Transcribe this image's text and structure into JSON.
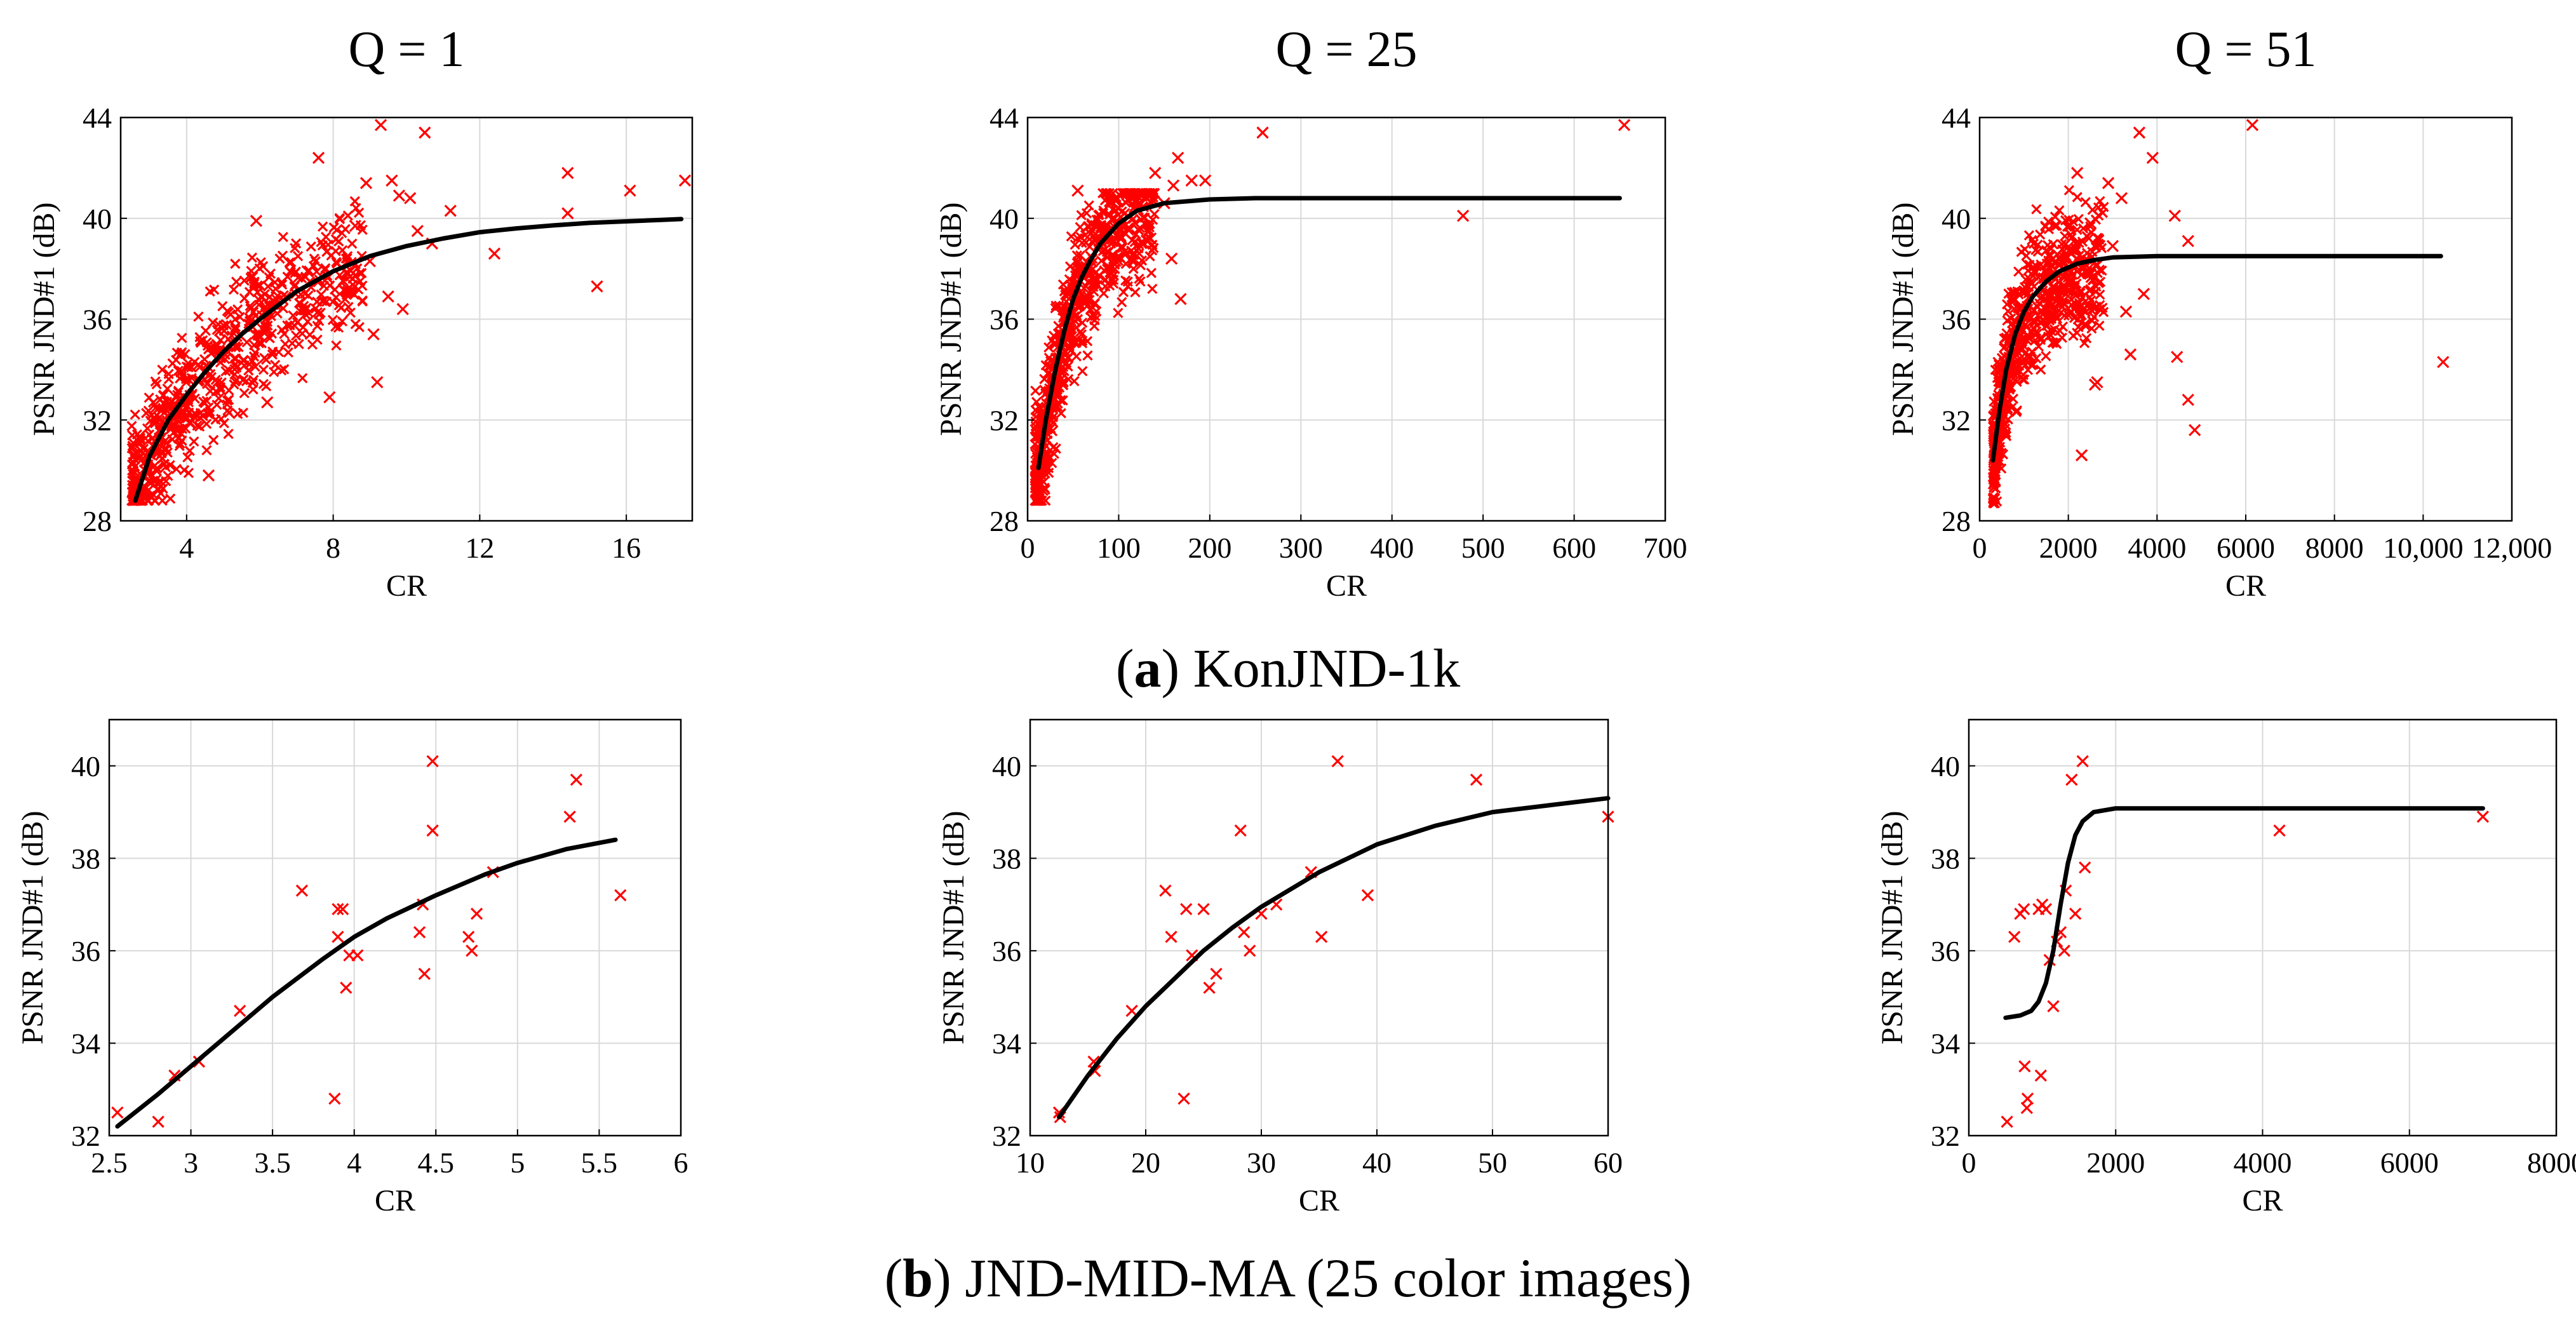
{
  "figure": {
    "caption_a": {
      "letter": "a",
      "text": "KonJND-1k"
    },
    "caption_b": {
      "letter": "b",
      "text": "JND-MID-MA (25 color images)"
    },
    "marker_color": "#ff0000",
    "curve_color": "#000000"
  },
  "chart_data": [
    {
      "type": "scatter",
      "panel": "a1",
      "title": "Q = 1",
      "xlabel": "CR",
      "ylabel": "PSNR JND#1 (dB)",
      "xlim": [
        2.2,
        17.8
      ],
      "ylim": [
        28,
        44
      ],
      "xticks": [
        4,
        8,
        12,
        16
      ],
      "xtick_labels": [
        "4",
        "8",
        "12",
        "16"
      ],
      "yticks": [
        28,
        32,
        36,
        40,
        44
      ],
      "ytick_labels": [
        "28",
        "32",
        "36",
        "40",
        "44"
      ],
      "cloud": {
        "n": 700,
        "xmin": 2.5,
        "xmax": 8.8,
        "ymin": 28.8,
        "ymax": 40.8,
        "seed": 11
      },
      "fit": {
        "x": [
          2.6,
          3.0,
          3.5,
          4.0,
          4.5,
          5.0,
          5.5,
          6.0,
          7.0,
          8.0,
          9.0,
          10.0,
          11.0,
          12.0,
          13.0,
          14.0,
          15.0,
          16.0,
          17.0,
          17.5
        ],
        "y": [
          28.8,
          30.6,
          32.0,
          33.0,
          33.9,
          34.7,
          35.4,
          36.0,
          37.1,
          37.9,
          38.5,
          38.9,
          39.2,
          39.45,
          39.6,
          39.72,
          39.82,
          39.88,
          39.94,
          39.97
        ]
      },
      "points": [
        {
          "x": 7.6,
          "y": 42.4
        },
        {
          "x": 9.3,
          "y": 43.7
        },
        {
          "x": 10.5,
          "y": 43.4
        },
        {
          "x": 14.4,
          "y": 41.8
        },
        {
          "x": 16.1,
          "y": 41.1
        },
        {
          "x": 17.6,
          "y": 41.5
        },
        {
          "x": 9.6,
          "y": 41.5
        },
        {
          "x": 8.9,
          "y": 41.4
        },
        {
          "x": 9.8,
          "y": 40.9
        },
        {
          "x": 10.1,
          "y": 40.8
        },
        {
          "x": 11.2,
          "y": 40.3
        },
        {
          "x": 14.4,
          "y": 40.2
        },
        {
          "x": 10.7,
          "y": 39.0
        },
        {
          "x": 12.4,
          "y": 38.6
        },
        {
          "x": 15.2,
          "y": 37.3
        },
        {
          "x": 9.1,
          "y": 35.4
        },
        {
          "x": 9.2,
          "y": 33.5
        },
        {
          "x": 7.9,
          "y": 32.9
        },
        {
          "x": 6.2,
          "y": 32.7
        },
        {
          "x": 4.6,
          "y": 29.8
        },
        {
          "x": 8.4,
          "y": 37.2
        },
        {
          "x": 9.0,
          "y": 38.3
        },
        {
          "x": 9.5,
          "y": 36.9
        },
        {
          "x": 8.6,
          "y": 39.7
        },
        {
          "x": 9.9,
          "y": 36.4
        },
        {
          "x": 10.3,
          "y": 39.5
        },
        {
          "x": 7.3,
          "y": 37.9
        },
        {
          "x": 5.9,
          "y": 39.9
        }
      ]
    },
    {
      "type": "scatter",
      "panel": "a2",
      "title": "Q = 25",
      "xlabel": "CR",
      "ylabel": "PSNR JND#1 (dB)",
      "xlim": [
        0,
        700
      ],
      "ylim": [
        28,
        44
      ],
      "xticks": [
        0,
        100,
        200,
        300,
        400,
        500,
        600,
        700
      ],
      "xtick_labels": [
        "0",
        "100",
        "200",
        "300",
        "400",
        "500",
        "600",
        "700"
      ],
      "yticks": [
        28,
        32,
        36,
        40,
        44
      ],
      "ytick_labels": [
        "28",
        "32",
        "36",
        "40",
        "44"
      ],
      "cloud": {
        "n": 700,
        "xmin": 8,
        "xmax": 140,
        "ymin": 28.8,
        "ymax": 41,
        "seed": 23
      },
      "fit": {
        "x": [
          12,
          20,
          30,
          40,
          50,
          60,
          70,
          80,
          100,
          120,
          150,
          200,
          250,
          300,
          400,
          500,
          600,
          650
        ],
        "y": [
          30.1,
          32.0,
          33.9,
          35.5,
          36.8,
          37.7,
          38.4,
          39.0,
          39.8,
          40.3,
          40.6,
          40.75,
          40.8,
          40.8,
          40.8,
          40.8,
          40.8,
          40.8
        ]
      },
      "points": [
        {
          "x": 655,
          "y": 43.7
        },
        {
          "x": 258,
          "y": 43.4
        },
        {
          "x": 478,
          "y": 40.1
        },
        {
          "x": 55,
          "y": 41.1
        },
        {
          "x": 140,
          "y": 41.8
        },
        {
          "x": 165,
          "y": 42.4
        },
        {
          "x": 180,
          "y": 41.5
        },
        {
          "x": 195,
          "y": 41.5
        },
        {
          "x": 150,
          "y": 40.6
        },
        {
          "x": 158,
          "y": 38.4
        },
        {
          "x": 168,
          "y": 36.8
        },
        {
          "x": 125,
          "y": 40.9
        },
        {
          "x": 110,
          "y": 39.6
        },
        {
          "x": 95,
          "y": 39.1
        },
        {
          "x": 135,
          "y": 39.2
        },
        {
          "x": 160,
          "y": 41.3
        }
      ]
    },
    {
      "type": "scatter",
      "panel": "a3",
      "title": "Q = 51",
      "xlabel": "CR",
      "ylabel": "PSNR JND#1 (dB)",
      "xlim": [
        0,
        12000
      ],
      "ylim": [
        28,
        44
      ],
      "xticks": [
        0,
        2000,
        4000,
        6000,
        8000,
        10000,
        12000
      ],
      "xtick_labels": [
        "0",
        "2000",
        "4000",
        "6000",
        "8000",
        "10,000",
        "12,000"
      ],
      "yticks": [
        28,
        32,
        36,
        40,
        44
      ],
      "ytick_labels": [
        "28",
        "32",
        "36",
        "40",
        "44"
      ],
      "cloud": {
        "n": 650,
        "xmin": 300,
        "xmax": 2800,
        "ymin": 28.7,
        "ymax": 41.2,
        "seed": 37
      },
      "fit": {
        "x": [
          300,
          450,
          600,
          800,
          1000,
          1200,
          1500,
          1800,
          2200,
          2600,
          3000,
          4000,
          5000,
          6000,
          8000,
          10400
        ],
        "y": [
          30.4,
          32.4,
          34.0,
          35.4,
          36.3,
          36.9,
          37.5,
          37.9,
          38.2,
          38.35,
          38.45,
          38.5,
          38.5,
          38.5,
          38.5,
          38.5
        ]
      },
      "points": [
        {
          "x": 6150,
          "y": 43.7
        },
        {
          "x": 3600,
          "y": 43.4
        },
        {
          "x": 3900,
          "y": 42.4
        },
        {
          "x": 10450,
          "y": 34.3
        },
        {
          "x": 4450,
          "y": 34.5
        },
        {
          "x": 4700,
          "y": 32.8
        },
        {
          "x": 4850,
          "y": 31.6
        },
        {
          "x": 4400,
          "y": 40.1
        },
        {
          "x": 4700,
          "y": 39.1
        },
        {
          "x": 3700,
          "y": 37.0
        },
        {
          "x": 3400,
          "y": 34.6
        },
        {
          "x": 2650,
          "y": 33.5
        },
        {
          "x": 2300,
          "y": 30.6
        },
        {
          "x": 2900,
          "y": 41.4
        },
        {
          "x": 3200,
          "y": 40.8
        },
        {
          "x": 2200,
          "y": 41.8
        },
        {
          "x": 2600,
          "y": 33.4
        },
        {
          "x": 3000,
          "y": 38.9
        },
        {
          "x": 2500,
          "y": 39.8
        },
        {
          "x": 3300,
          "y": 36.3
        }
      ]
    },
    {
      "type": "scatter",
      "panel": "b1",
      "title": "",
      "xlabel": "CR",
      "ylabel": "PSNR JND#1 (dB)",
      "xlim": [
        2.5,
        6
      ],
      "ylim": [
        32,
        41
      ],
      "xticks": [
        2.5,
        3,
        3.5,
        4,
        4.5,
        5,
        5.5,
        6
      ],
      "xtick_labels": [
        "2.5",
        "3",
        "3.5",
        "4",
        "4.5",
        "5",
        "5.5",
        "6"
      ],
      "yticks": [
        32,
        34,
        36,
        38,
        40
      ],
      "ytick_labels": [
        "32",
        "34",
        "36",
        "38",
        "40"
      ],
      "fit": {
        "x": [
          2.55,
          2.8,
          3.0,
          3.2,
          3.5,
          3.8,
          4.0,
          4.2,
          4.5,
          4.8,
          5.0,
          5.3,
          5.6
        ],
        "y": [
          32.2,
          32.9,
          33.5,
          34.1,
          35.0,
          35.8,
          36.3,
          36.7,
          37.2,
          37.65,
          37.9,
          38.2,
          38.4
        ]
      },
      "points": [
        {
          "x": 2.55,
          "y": 32.5
        },
        {
          "x": 2.8,
          "y": 32.3
        },
        {
          "x": 2.9,
          "y": 33.3
        },
        {
          "x": 3.05,
          "y": 33.6
        },
        {
          "x": 3.3,
          "y": 34.7
        },
        {
          "x": 3.68,
          "y": 37.3
        },
        {
          "x": 3.88,
          "y": 32.8
        },
        {
          "x": 3.9,
          "y": 36.3
        },
        {
          "x": 3.9,
          "y": 36.9
        },
        {
          "x": 3.93,
          "y": 36.9
        },
        {
          "x": 3.95,
          "y": 35.2
        },
        {
          "x": 3.97,
          "y": 35.9
        },
        {
          "x": 4.02,
          "y": 35.9
        },
        {
          "x": 4.4,
          "y": 36.4
        },
        {
          "x": 4.42,
          "y": 37.0
        },
        {
          "x": 4.43,
          "y": 35.5
        },
        {
          "x": 4.48,
          "y": 40.1
        },
        {
          "x": 4.48,
          "y": 38.6
        },
        {
          "x": 4.7,
          "y": 36.3
        },
        {
          "x": 4.72,
          "y": 36.0
        },
        {
          "x": 4.75,
          "y": 36.8
        },
        {
          "x": 4.85,
          "y": 37.7
        },
        {
          "x": 5.32,
          "y": 38.9
        },
        {
          "x": 5.36,
          "y": 39.7
        },
        {
          "x": 5.63,
          "y": 37.2
        }
      ]
    },
    {
      "type": "scatter",
      "panel": "b2",
      "title": "",
      "xlabel": "CR",
      "ylabel": "PSNR JND#1 (dB)",
      "xlim": [
        10,
        60
      ],
      "ylim": [
        32,
        41
      ],
      "xticks": [
        10,
        20,
        30,
        40,
        50,
        60
      ],
      "xtick_labels": [
        "10",
        "20",
        "30",
        "40",
        "50",
        "60"
      ],
      "yticks": [
        32,
        34,
        36,
        38,
        40
      ],
      "ytick_labels": [
        "32",
        "34",
        "36",
        "38",
        "40"
      ],
      "fit": {
        "x": [
          12.5,
          15,
          17.5,
          20,
          22.5,
          25,
          27.5,
          30,
          35,
          40,
          45,
          50,
          55,
          60
        ],
        "y": [
          32.4,
          33.3,
          34.1,
          34.8,
          35.4,
          36.0,
          36.5,
          36.95,
          37.7,
          38.3,
          38.7,
          39.0,
          39.15,
          39.3
        ]
      },
      "points": [
        {
          "x": 12.5,
          "y": 32.5
        },
        {
          "x": 12.6,
          "y": 32.4
        },
        {
          "x": 15.5,
          "y": 33.6
        },
        {
          "x": 15.6,
          "y": 33.4
        },
        {
          "x": 18.8,
          "y": 34.7
        },
        {
          "x": 21.7,
          "y": 37.3
        },
        {
          "x": 22.2,
          "y": 36.3
        },
        {
          "x": 23.3,
          "y": 32.8
        },
        {
          "x": 23.5,
          "y": 36.9
        },
        {
          "x": 24.0,
          "y": 35.9
        },
        {
          "x": 25.0,
          "y": 36.9
        },
        {
          "x": 25.5,
          "y": 35.2
        },
        {
          "x": 26.1,
          "y": 35.5
        },
        {
          "x": 28.2,
          "y": 38.6
        },
        {
          "x": 28.5,
          "y": 36.4
        },
        {
          "x": 29.0,
          "y": 36.0
        },
        {
          "x": 30.0,
          "y": 36.8
        },
        {
          "x": 31.3,
          "y": 37.0
        },
        {
          "x": 34.3,
          "y": 37.7
        },
        {
          "x": 35.2,
          "y": 36.3
        },
        {
          "x": 36.6,
          "y": 40.1
        },
        {
          "x": 39.2,
          "y": 37.2
        },
        {
          "x": 48.6,
          "y": 39.7
        },
        {
          "x": 60.0,
          "y": 38.9
        }
      ]
    },
    {
      "type": "scatter",
      "panel": "b3",
      "title": "",
      "xlabel": "CR",
      "ylabel": "PSNR JND#1 (dB)",
      "xlim": [
        0,
        8000
      ],
      "ylim": [
        32,
        41
      ],
      "xticks": [
        0,
        2000,
        4000,
        6000,
        8000
      ],
      "xtick_labels": [
        "0",
        "2000",
        "4000",
        "6000",
        "8000"
      ],
      "yticks": [
        32,
        34,
        36,
        38,
        40
      ],
      "ytick_labels": [
        "32",
        "34",
        "36",
        "38",
        "40"
      ],
      "fit": {
        "x": [
          500,
          700,
          850,
          950,
          1050,
          1150,
          1250,
          1350,
          1450,
          1550,
          1700,
          2000,
          3000,
          5000,
          7000
        ],
        "y": [
          34.55,
          34.6,
          34.7,
          34.9,
          35.3,
          36.0,
          37.0,
          37.9,
          38.5,
          38.8,
          39.0,
          39.08,
          39.08,
          39.08,
          39.08
        ]
      },
      "points": [
        {
          "x": 520,
          "y": 32.3
        },
        {
          "x": 620,
          "y": 36.3
        },
        {
          "x": 700,
          "y": 36.8
        },
        {
          "x": 750,
          "y": 36.9
        },
        {
          "x": 760,
          "y": 33.5
        },
        {
          "x": 790,
          "y": 32.6
        },
        {
          "x": 800,
          "y": 32.8
        },
        {
          "x": 950,
          "y": 36.9
        },
        {
          "x": 980,
          "y": 33.3
        },
        {
          "x": 1000,
          "y": 37.0
        },
        {
          "x": 1050,
          "y": 36.9
        },
        {
          "x": 1100,
          "y": 35.8
        },
        {
          "x": 1150,
          "y": 34.8
        },
        {
          "x": 1200,
          "y": 36.2
        },
        {
          "x": 1250,
          "y": 36.4
        },
        {
          "x": 1300,
          "y": 36.0
        },
        {
          "x": 1320,
          "y": 37.3
        },
        {
          "x": 1400,
          "y": 39.7
        },
        {
          "x": 1450,
          "y": 36.8
        },
        {
          "x": 1550,
          "y": 40.1
        },
        {
          "x": 1580,
          "y": 37.8
        },
        {
          "x": 4230,
          "y": 38.6
        },
        {
          "x": 7000,
          "y": 38.9
        }
      ]
    }
  ]
}
